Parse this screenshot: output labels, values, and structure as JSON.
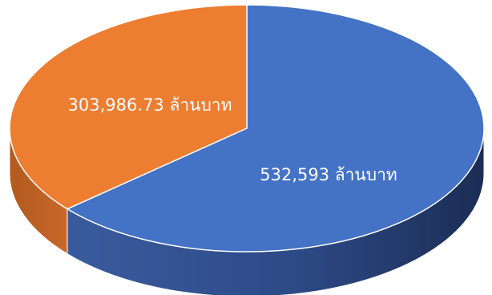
{
  "chart_data": {
    "type": "pie",
    "style": "3d",
    "slices": [
      {
        "value": 532593,
        "label": "532,593 ล้านบาท",
        "color": "#4472c4"
      },
      {
        "value": 303986.73,
        "label": "303,986.73 ล้านบาท",
        "color": "#ed7d31"
      }
    ]
  }
}
